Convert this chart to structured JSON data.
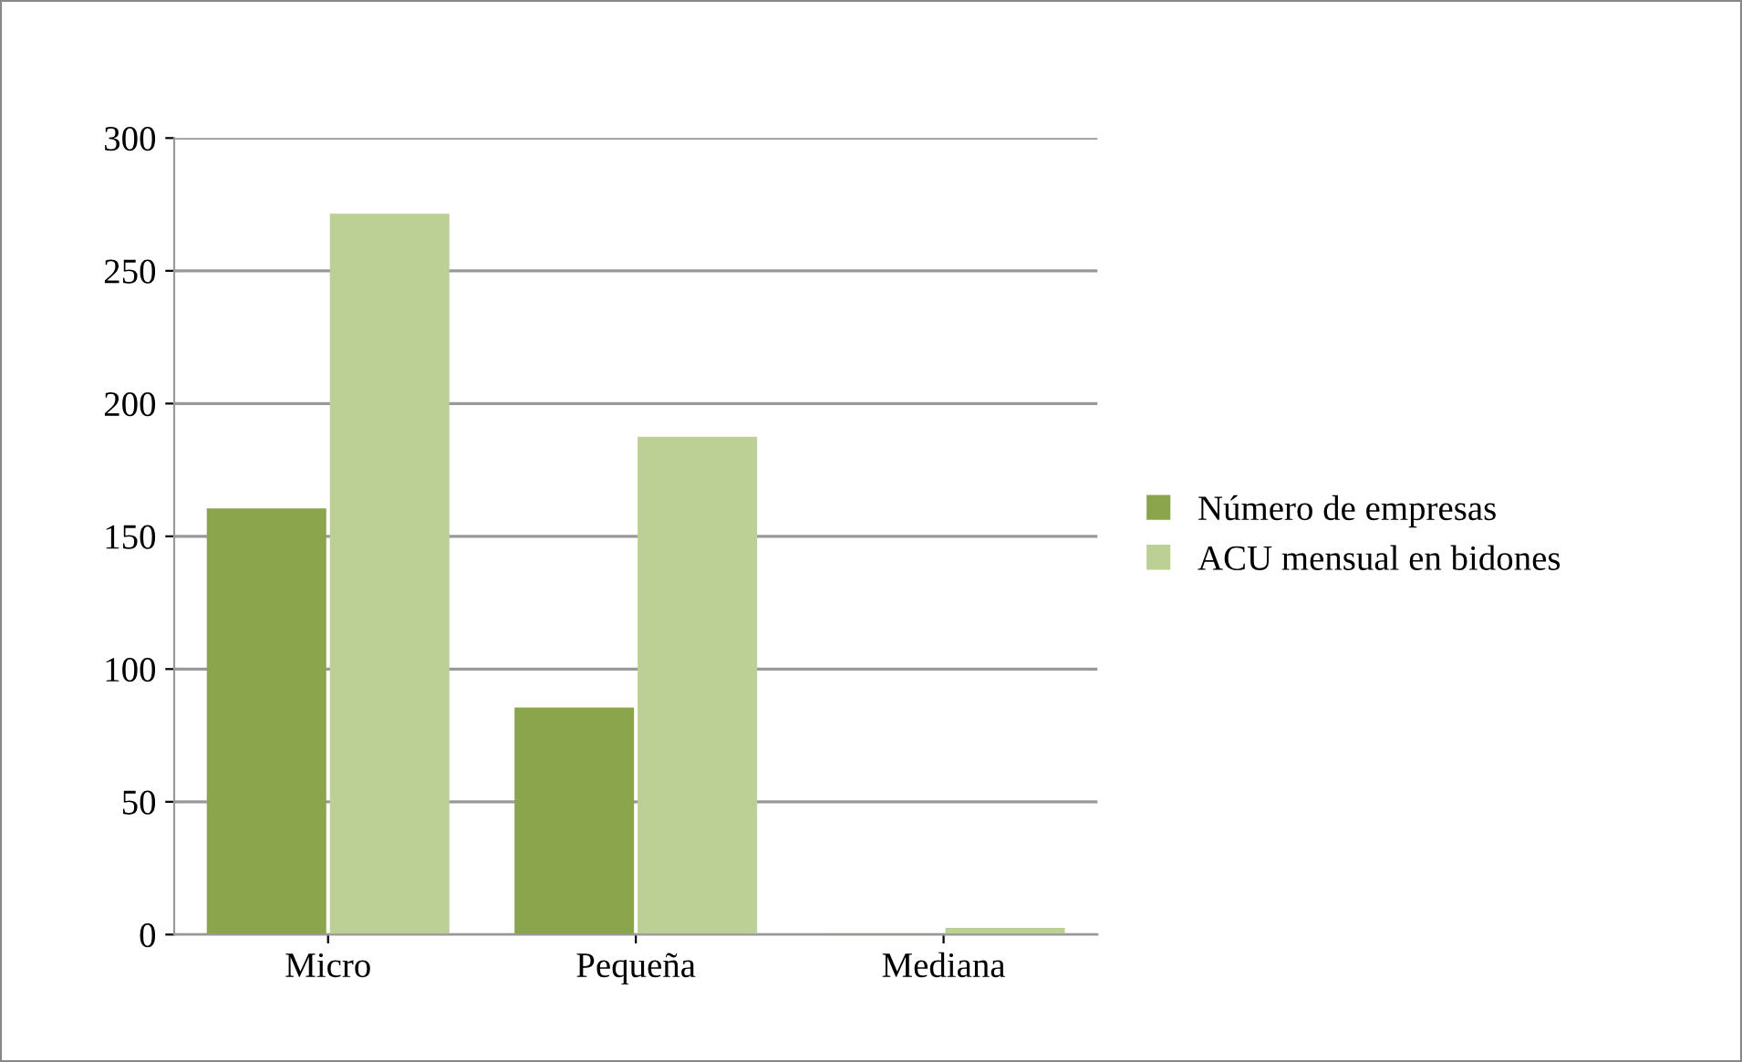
{
  "chart_data": {
    "type": "bar",
    "categories": [
      "Micro",
      "Pequeña",
      "Mediana"
    ],
    "series": [
      {
        "name": "Número de empresas",
        "color": "#8aa54c",
        "values": [
          160,
          85,
          0
        ]
      },
      {
        "name": "ACU mensual en bidones",
        "color": "#bccf94",
        "values": [
          271,
          187,
          2
        ]
      }
    ],
    "ylim": [
      0,
      300
    ],
    "yticks": [
      0,
      50,
      100,
      150,
      200,
      250,
      300
    ],
    "grid": "y",
    "legend": "right"
  }
}
